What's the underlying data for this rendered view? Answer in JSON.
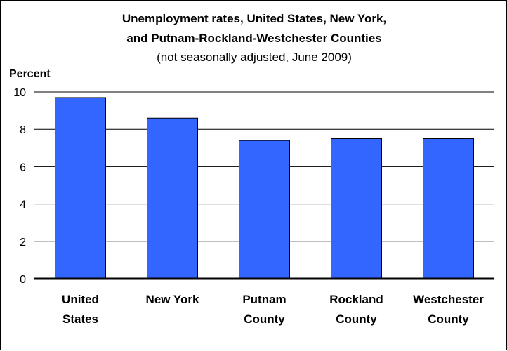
{
  "chart_data": {
    "type": "bar",
    "title": [
      "Unemployment rates, United States, New York,",
      "and Putnam-Rockland-Westchester Counties"
    ],
    "subtitle": "(not seasonally adjusted, June 2009)",
    "ylabel": "Percent",
    "xlabel": "",
    "categories": [
      [
        "United",
        "States"
      ],
      [
        "New York"
      ],
      [
        "Putnam",
        "County"
      ],
      [
        "Rockland",
        "County"
      ],
      [
        "Westchester",
        "County"
      ]
    ],
    "values": [
      9.7,
      8.6,
      7.4,
      7.5,
      7.5
    ],
    "ylim": [
      0,
      10
    ],
    "yticks": [
      0,
      2,
      4,
      6,
      8,
      10
    ],
    "grid": true,
    "legend": "none",
    "colors": {
      "bar": "#3366ff",
      "bar_stroke": "#000000",
      "grid": "#000000"
    }
  }
}
